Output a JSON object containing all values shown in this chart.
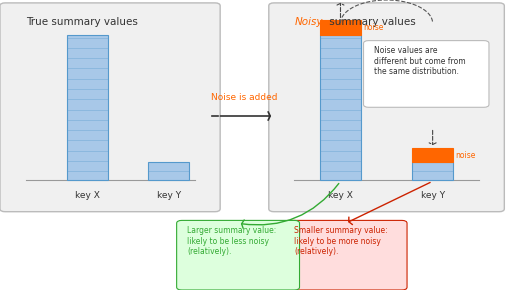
{
  "fig_width": 5.12,
  "fig_height": 2.9,
  "bg_color": "#ffffff",
  "panel_bg": "#f0f0f0",
  "bar_blue": "#a8c8e8",
  "bar_blue_edge": "#5599cc",
  "bar_orange": "#ff6600",
  "orange_color": "#ff6600",
  "red_color": "#cc2200",
  "green_color": "#33aa33",
  "green_bg": "#ddffdd",
  "red_bg": "#ffdddd",
  "true_title": "True summary values",
  "noisy_title_colored": "Noisy",
  "noisy_title_plain": " summary values",
  "key_x_label": "key X",
  "key_y_label": "key Y",
  "noise_label": "noise",
  "noise_added_text": "Noise is added",
  "noise_dist_text": "Noise values are\ndifferent but come from\nthe same distribution.",
  "smaller_text": "Smaller summary value:\nlikely to be more noisy\n(relatively).",
  "larger_text": "Larger summary value:\nlikely to be less noisy\n(relatively)."
}
